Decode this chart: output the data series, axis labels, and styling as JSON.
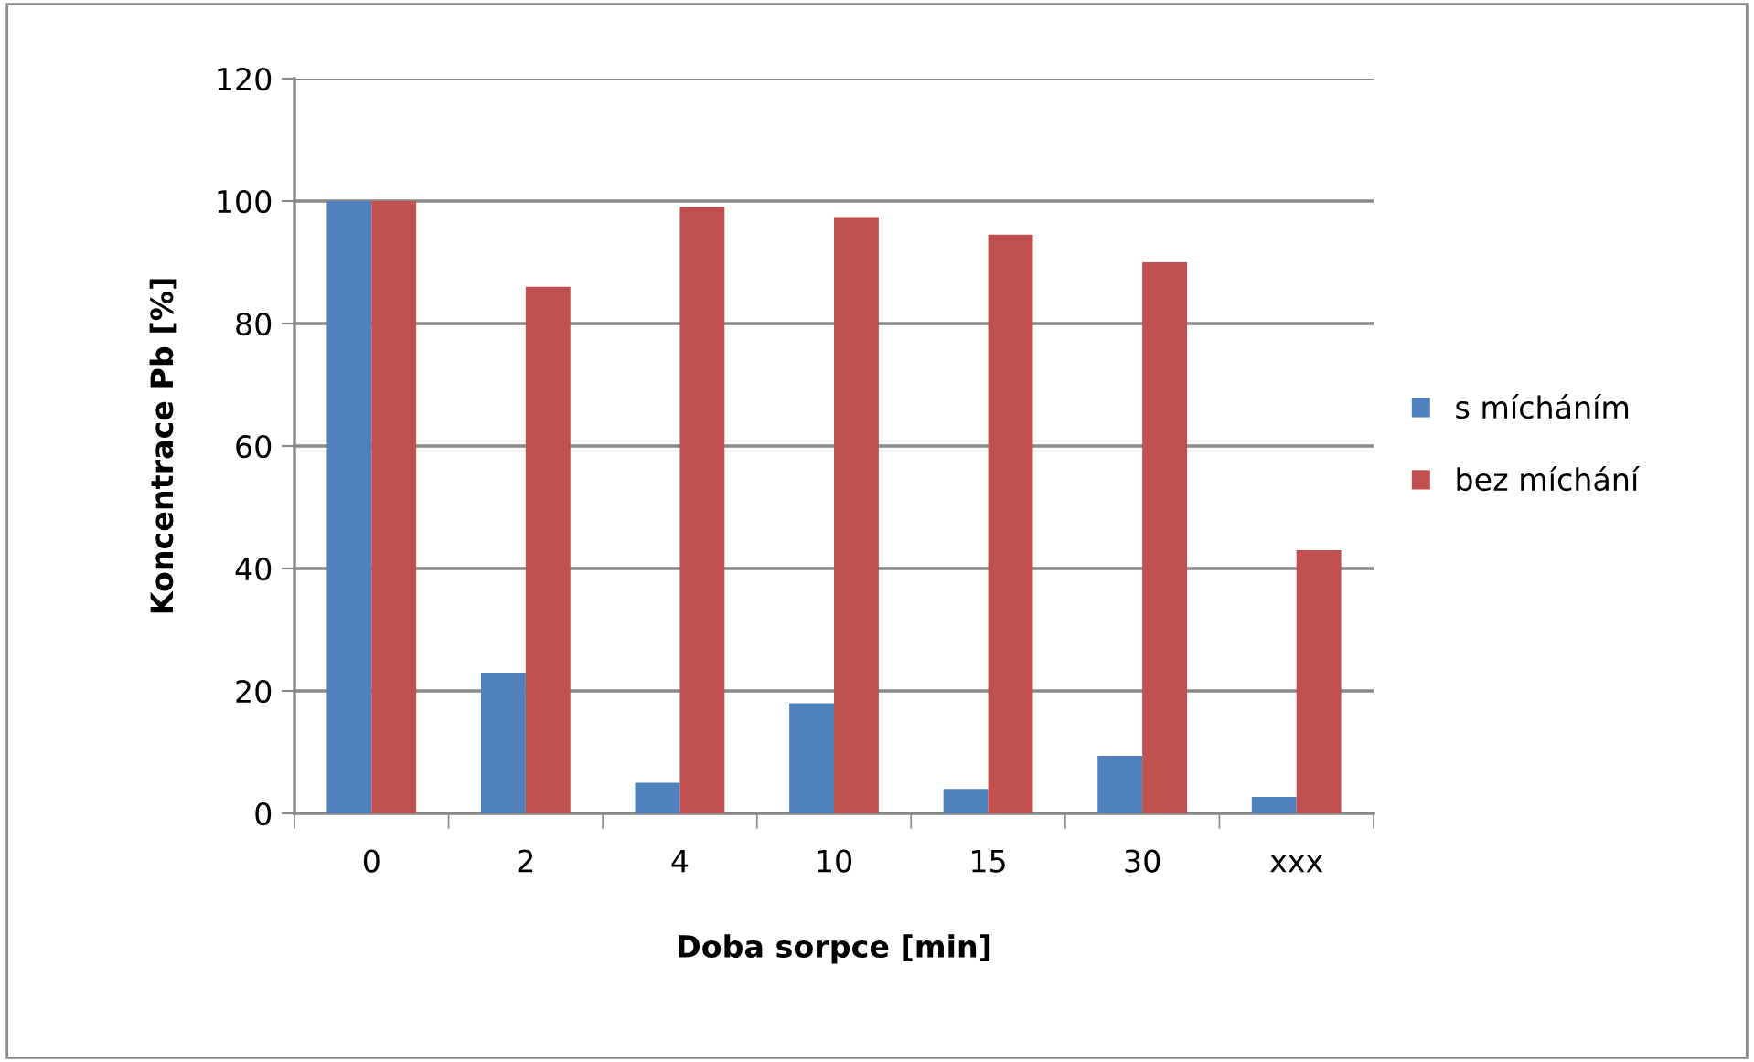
{
  "chart_data": {
    "type": "bar",
    "xlabel": "Doba sorpce [min]",
    "ylabel": "Koncentrace Pb [%]",
    "categories": [
      "0",
      "2",
      "4",
      "10",
      "15",
      "30",
      "xxx"
    ],
    "series": [
      {
        "name": "s mícháním",
        "color": "#4f81bd",
        "values": [
          100,
          23,
          5,
          18,
          4,
          9.4,
          2.7
        ]
      },
      {
        "name": "bez míchání",
        "color": "#c0504d",
        "values": [
          100,
          86,
          99,
          97.4,
          94.5,
          90,
          43
        ]
      }
    ],
    "ylim": [
      0,
      120
    ],
    "yticks": [
      0,
      20,
      40,
      60,
      80,
      100,
      120
    ],
    "grid": "y",
    "legend": "right"
  }
}
